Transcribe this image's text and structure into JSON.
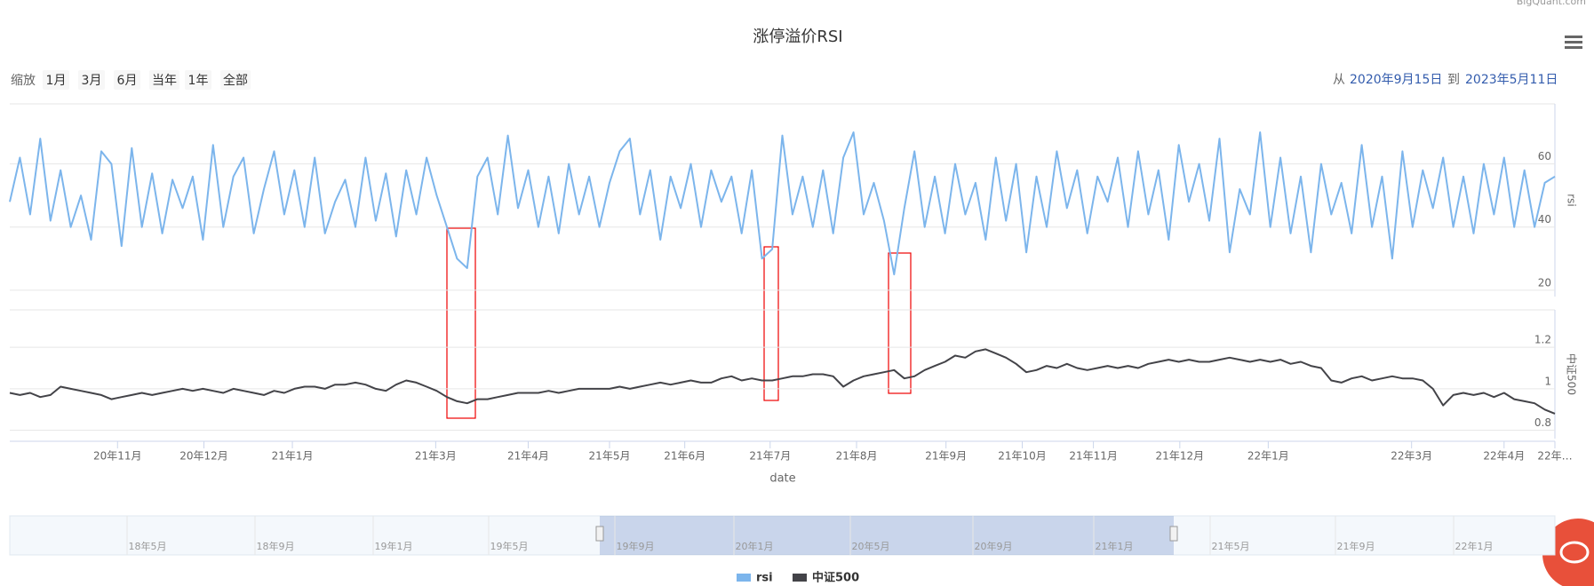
{
  "chart_data": {
    "type": "line",
    "title": "涨停溢价RSI",
    "credits": "BigQuant.com",
    "range_selector": {
      "zoom_label": "缩放",
      "buttons": [
        "1月",
        "3月",
        "6月",
        "当年",
        "1年",
        "全部"
      ],
      "from_label": "从",
      "from": "2020年9月15日",
      "to_label": "到",
      "to": "2023年5月11日"
    },
    "xlabel": "date",
    "ylabel": "rsi",
    "y2label": "中证500",
    "xlim": [
      0,
      152
    ],
    "xticks": [
      {
        "value": 10.6,
        "label": "20年11月"
      },
      {
        "value": 19.1,
        "label": "20年12月"
      },
      {
        "value": 27.8,
        "label": "21年1月"
      },
      {
        "value": 41.9,
        "label": "21年3月"
      },
      {
        "value": 51,
        "label": "21年4月"
      },
      {
        "value": 59,
        "label": "21年5月"
      },
      {
        "value": 66.4,
        "label": "21年6月"
      },
      {
        "value": 74.8,
        "label": "21年7月"
      },
      {
        "value": 83.3,
        "label": "21年8月"
      },
      {
        "value": 92.1,
        "label": "21年9月"
      },
      {
        "value": 99.6,
        "label": "21年10月"
      },
      {
        "value": 106.6,
        "label": "21年11月"
      },
      {
        "value": 115.1,
        "label": "21年12月"
      },
      {
        "value": 123.8,
        "label": "22年1月"
      },
      {
        "value": 137.9,
        "label": "22年3月"
      },
      {
        "value": 147,
        "label": "22年4月"
      },
      {
        "value": 152,
        "label": "22年…"
      }
    ],
    "ylim": [
      18,
      79
    ],
    "yticks": [
      20,
      40,
      60
    ],
    "y2lim": [
      0.76,
      1.38
    ],
    "y2ticks": [
      0.8,
      1,
      1.2
    ],
    "grid": true,
    "legend": "bottom",
    "series": [
      {
        "name": "rsi",
        "color": "#7cb5ec",
        "axis": "y",
        "values": [
          48,
          62,
          44,
          68,
          42,
          58,
          40,
          50,
          36,
          64,
          60,
          34,
          65,
          40,
          57,
          38,
          55,
          46,
          56,
          36,
          66,
          40,
          56,
          62,
          38,
          52,
          64,
          44,
          58,
          40,
          62,
          38,
          48,
          55,
          40,
          62,
          42,
          57,
          37,
          58,
          44,
          62,
          50,
          40,
          30,
          27,
          56,
          62,
          44,
          69,
          46,
          58,
          40,
          56,
          38,
          60,
          44,
          56,
          40,
          54,
          64,
          68,
          44,
          58,
          36,
          56,
          46,
          60,
          40,
          58,
          48,
          56,
          38,
          58,
          30,
          33,
          69,
          44,
          56,
          40,
          58,
          38,
          62,
          70,
          44,
          54,
          42,
          25,
          46,
          64,
          40,
          56,
          38,
          60,
          44,
          54,
          36,
          62,
          42,
          60,
          32,
          56,
          40,
          64,
          46,
          58,
          38,
          56,
          48,
          62,
          40,
          64,
          44,
          58,
          36,
          66,
          48,
          60,
          42,
          68,
          32,
          52,
          44,
          70,
          40,
          62,
          38,
          56,
          32,
          60,
          44,
          54,
          38,
          66,
          40,
          56,
          30,
          64,
          40,
          58,
          46,
          62,
          40,
          56,
          38,
          60,
          44,
          62,
          40,
          58,
          40,
          54,
          56
        ]
      },
      {
        "name": "中证500",
        "color": "#434348",
        "axis": "y2",
        "values": [
          0.98,
          0.97,
          0.98,
          0.96,
          0.97,
          1.01,
          1.0,
          0.99,
          0.98,
          0.97,
          0.95,
          0.96,
          0.97,
          0.98,
          0.97,
          0.98,
          0.99,
          1.0,
          0.99,
          1.0,
          0.99,
          0.98,
          1.0,
          0.99,
          0.98,
          0.97,
          0.99,
          0.98,
          1.0,
          1.01,
          1.01,
          1.0,
          1.02,
          1.02,
          1.03,
          1.02,
          1.0,
          0.99,
          1.02,
          1.04,
          1.03,
          1.01,
          0.99,
          0.96,
          0.94,
          0.93,
          0.95,
          0.95,
          0.96,
          0.97,
          0.98,
          0.98,
          0.98,
          0.99,
          0.98,
          0.99,
          1.0,
          1.0,
          1.0,
          1.0,
          1.01,
          1.0,
          1.01,
          1.02,
          1.03,
          1.02,
          1.03,
          1.04,
          1.03,
          1.03,
          1.05,
          1.06,
          1.04,
          1.05,
          1.04,
          1.04,
          1.05,
          1.06,
          1.06,
          1.07,
          1.07,
          1.06,
          1.01,
          1.04,
          1.06,
          1.07,
          1.08,
          1.09,
          1.05,
          1.06,
          1.09,
          1.11,
          1.13,
          1.16,
          1.15,
          1.18,
          1.19,
          1.17,
          1.15,
          1.12,
          1.08,
          1.09,
          1.11,
          1.1,
          1.12,
          1.1,
          1.09,
          1.1,
          1.11,
          1.1,
          1.11,
          1.1,
          1.12,
          1.13,
          1.14,
          1.13,
          1.14,
          1.13,
          1.13,
          1.14,
          1.15,
          1.14,
          1.13,
          1.14,
          1.13,
          1.14,
          1.12,
          1.13,
          1.11,
          1.1,
          1.04,
          1.03,
          1.05,
          1.06,
          1.04,
          1.05,
          1.06,
          1.05,
          1.05,
          1.04,
          1.0,
          0.92,
          0.97,
          0.98,
          0.97,
          0.98,
          0.96,
          0.98,
          0.95,
          0.94,
          0.93,
          0.9,
          0.88
        ]
      }
    ],
    "navigator": {
      "labels": [
        "18年5月",
        "18年9月",
        "19年1月",
        "19年5月",
        "19年9月",
        "20年1月",
        "20年5月",
        "20年9月",
        "21年1月",
        "21年5月",
        "21年9月",
        "22年1月"
      ]
    }
  }
}
